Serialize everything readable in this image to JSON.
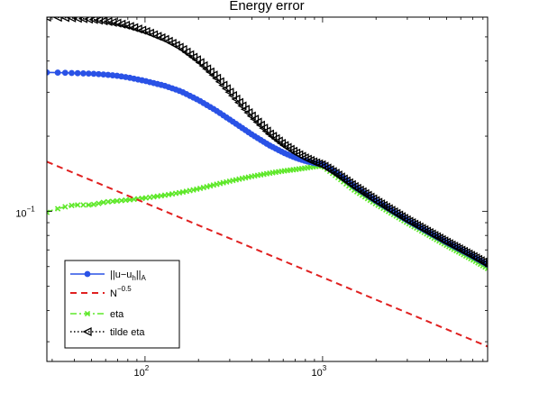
{
  "chart_data": {
    "type": "line",
    "title": "Energy error",
    "xlabel": "",
    "ylabel": "",
    "xscale": "log",
    "yscale": "log",
    "xlim": [
      28,
      8500
    ],
    "ylim": [
      0.025,
      0.6
    ],
    "grid": false,
    "legend_position": "bottom-left",
    "x_ticks": [
      {
        "base": "10",
        "exp": "2",
        "value": 100
      },
      {
        "base": "10",
        "exp": "3",
        "value": 1000
      }
    ],
    "y_ticks": [
      {
        "base": "10",
        "exp": "−1",
        "value": 0.1
      }
    ],
    "series": [
      {
        "label": {
          "main": "||u−u",
          "sub": "h",
          "mid": "||",
          "sub2": "A",
          "sup": ""
        },
        "color": "#2a52e6",
        "style": "solid",
        "marker": "circle",
        "x": [
          28,
          30,
          35,
          40,
          50,
          60,
          70,
          80,
          100,
          130,
          160,
          200,
          250,
          300,
          400,
          500,
          600,
          700,
          800,
          900,
          1000,
          1200,
          1500,
          2000,
          3000,
          4000,
          5000,
          6000,
          7000,
          8500
        ],
        "y": [
          0.36,
          0.36,
          0.359,
          0.358,
          0.356,
          0.353,
          0.349,
          0.344,
          0.333,
          0.318,
          0.302,
          0.279,
          0.254,
          0.233,
          0.203,
          0.184,
          0.172,
          0.164,
          0.159,
          0.156,
          0.154,
          0.142,
          0.126,
          0.11,
          0.092,
          0.082,
          0.075,
          0.07,
          0.066,
          0.061
        ]
      },
      {
        "label": {
          "main": "N",
          "sub": "",
          "mid": "",
          "sub2": "",
          "sup": "−0.5"
        },
        "color": "#e02020",
        "style": "dashed",
        "marker": "none",
        "x": [
          28,
          8500
        ],
        "y": [
          0.158,
          0.0287
        ]
      },
      {
        "label": {
          "main": "eta",
          "sub": "",
          "mid": "",
          "sub2": "",
          "sup": ""
        },
        "color": "#5fe82a",
        "style": "dashdot",
        "marker": "x",
        "x": [
          28,
          30,
          35,
          40,
          45,
          50,
          60,
          70,
          80,
          100,
          130,
          160,
          200,
          250,
          300,
          400,
          500,
          600,
          700,
          800,
          900,
          1000,
          1200,
          1500,
          2000,
          3000,
          4000,
          5000,
          6000,
          7000,
          8500
        ],
        "y": [
          0.099,
          0.101,
          0.104,
          0.106,
          0.106,
          0.106,
          0.109,
          0.11,
          0.111,
          0.113,
          0.116,
          0.119,
          0.123,
          0.128,
          0.132,
          0.138,
          0.142,
          0.145,
          0.147,
          0.149,
          0.151,
          0.152,
          0.138,
          0.122,
          0.107,
          0.09,
          0.08,
          0.073,
          0.068,
          0.064,
          0.059
        ]
      },
      {
        "label": {
          "main": "tilde eta",
          "sub": "",
          "mid": "",
          "sub2": "",
          "sup": ""
        },
        "color": "#000000",
        "style": "dotted",
        "marker": "triangle-left",
        "x": [
          28,
          30,
          35,
          40,
          50,
          60,
          70,
          80,
          100,
          130,
          160,
          200,
          250,
          300,
          400,
          500,
          600,
          700,
          800,
          900,
          1000,
          1200,
          1500,
          2000,
          3000,
          4000,
          5000,
          6000,
          7000,
          8500
        ],
        "y": [
          0.6,
          0.6,
          0.598,
          0.595,
          0.588,
          0.578,
          0.567,
          0.554,
          0.527,
          0.488,
          0.45,
          0.4,
          0.345,
          0.3,
          0.24,
          0.205,
          0.185,
          0.172,
          0.163,
          0.157,
          0.153,
          0.141,
          0.126,
          0.11,
          0.092,
          0.082,
          0.075,
          0.07,
          0.066,
          0.061
        ]
      }
    ]
  }
}
